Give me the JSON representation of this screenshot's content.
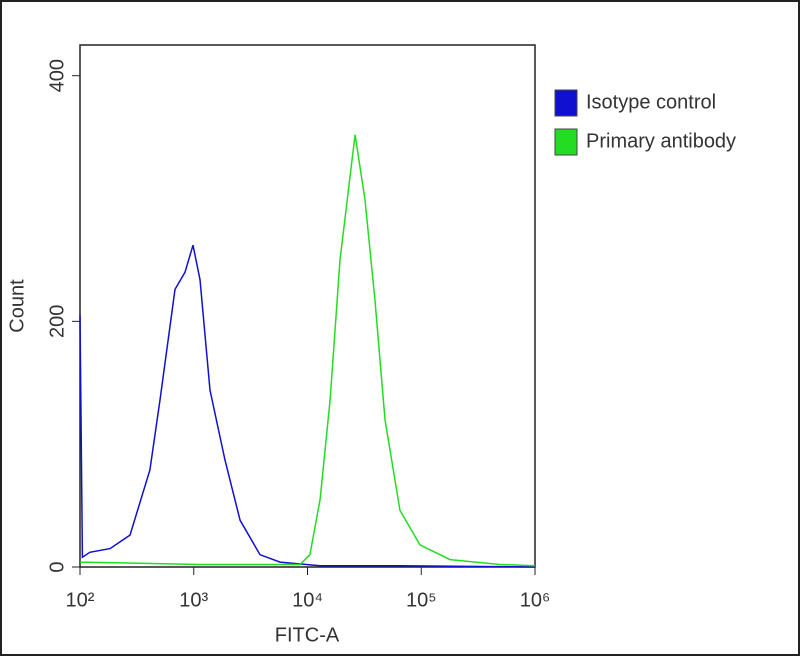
{
  "chart_data": {
    "type": "line",
    "x_label": "FITC-A",
    "y_label": "Count",
    "x_scale": "log",
    "xlim": [
      100,
      1000000
    ],
    "xticks": [
      {
        "value": 100,
        "label": "10²"
      },
      {
        "value": 1000,
        "label": "10³"
      },
      {
        "value": 10000,
        "label": "10⁴"
      },
      {
        "value": 100000,
        "label": "10⁵"
      },
      {
        "value": 1000000,
        "label": "10⁶"
      }
    ],
    "ylim": [
      0,
      425
    ],
    "yticks": [
      0,
      200,
      400
    ],
    "legend": "right",
    "series": [
      {
        "name": "Isotype control",
        "color": "#1010d0",
        "x": [
          100,
          105,
          122,
          184,
          275,
          412,
          505,
          684,
          837,
          984,
          1135,
          1390,
          1884,
          2553,
          3822,
          5730,
          12900,
          65000,
          1000000
        ],
        "values": [
          205,
          8,
          12,
          15,
          26,
          79,
          136,
          226,
          240,
          262,
          234,
          144,
          87,
          38,
          10,
          4,
          1,
          1,
          0
        ]
      },
      {
        "name": "Primary antibody",
        "color": "#22dd22",
        "x": [
          100,
          1135,
          8590,
          10500,
          12900,
          15800,
          19300,
          26200,
          32000,
          39200,
          48000,
          65000,
          97500,
          179000,
          492000,
          1000000
        ],
        "values": [
          4,
          2,
          2,
          10,
          55,
          136,
          250,
          352,
          299,
          217,
          120,
          46,
          18,
          6,
          2,
          1
        ]
      }
    ]
  }
}
